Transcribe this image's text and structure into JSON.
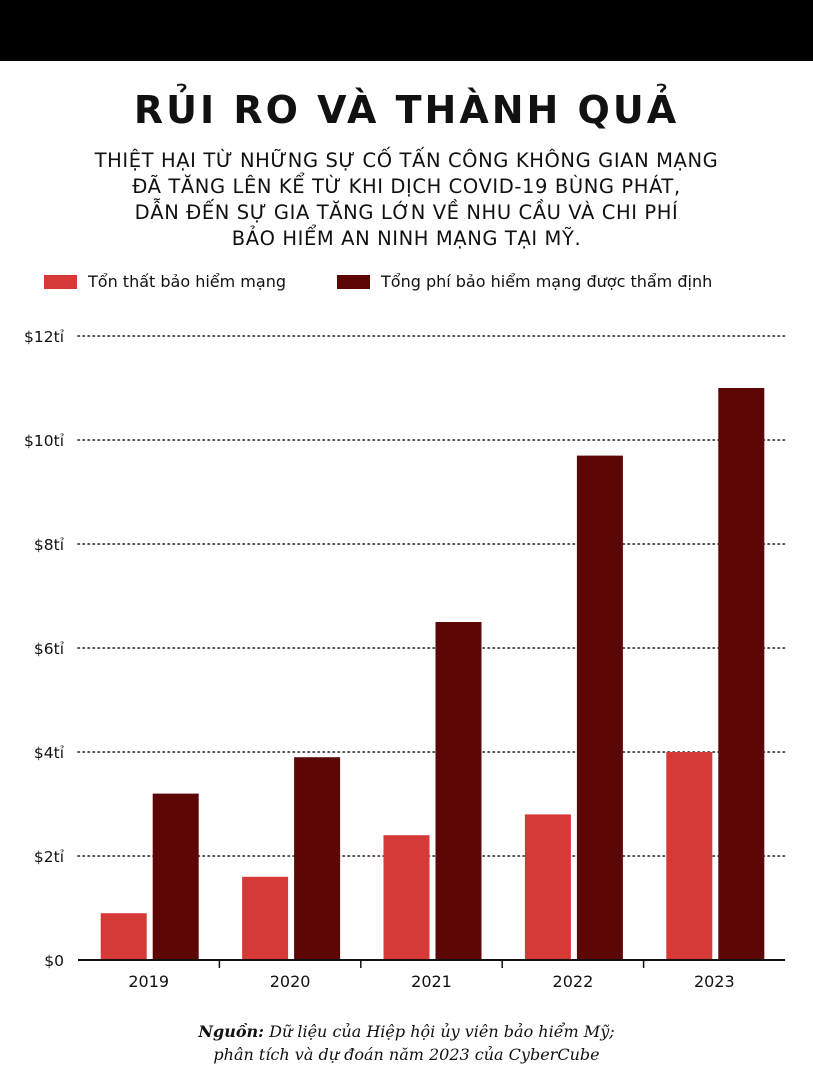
{
  "title": "RỦI RO VÀ THÀNH QUẢ",
  "subtitle_lines": [
    "THIỆT HẠI TỪ NHỮNG SỰ CỐ TẤN CÔNG KHÔNG GIAN MẠNG",
    "ĐÃ TĂNG LÊN KỂ TỪ KHI DỊCH COVID-19 BÙNG PHÁT,",
    "DẪN ĐẾN SỰ GIA TĂNG LỚN VỀ NHU CẦU VÀ CHI PHÍ",
    "BẢO HIỂM AN NINH MẠNG TẠI MỸ."
  ],
  "source": {
    "label": "Nguồn:",
    "line1": "Dữ liệu của Hiệp hội ủy viên bảo hiểm Mỹ;",
    "line2": "phân tích và dự đoán năm 2023 của CyberCube"
  },
  "colors": {
    "losses": "#d63a36",
    "premiums": "#5c0606"
  },
  "chart_data": {
    "type": "bar",
    "categories": [
      "2019",
      "2020",
      "2021",
      "2022",
      "2023"
    ],
    "series": [
      {
        "name": "Tổn thất bảo hiểm mạng",
        "values": [
          0.9,
          1.6,
          2.4,
          2.8,
          4.0
        ]
      },
      {
        "name": "Tổng phí bảo hiểm mạng được thẩm định",
        "values": [
          3.2,
          3.9,
          6.5,
          9.7,
          11.0
        ]
      }
    ],
    "yticks": [
      0,
      2,
      4,
      6,
      8,
      10,
      12
    ],
    "ytick_labels": [
      "$0",
      "$2tỉ",
      "$4tỉ",
      "$6tỉ",
      "$8tỉ",
      "$10tỉ",
      "$12tỉ"
    ],
    "ylim": [
      0,
      12
    ],
    "grid": true,
    "legend": "top-left"
  }
}
